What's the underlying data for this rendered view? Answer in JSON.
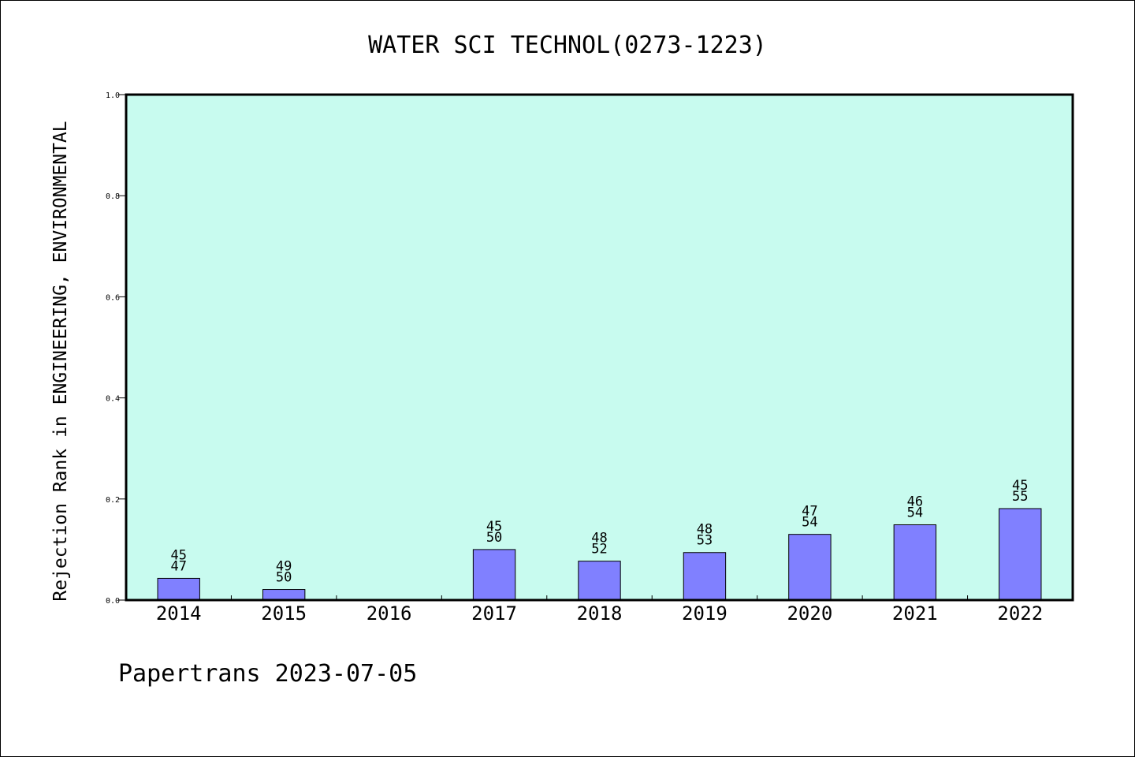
{
  "chart_data": {
    "type": "bar",
    "title": "WATER SCI TECHNOL(0273-1223)",
    "ylabel": "Rejection Rank in ENGINEERING, ENVIRONMENTAL",
    "xlabel": "",
    "ylim": [
      0,
      1.0
    ],
    "yticks": [
      "0.0",
      "0.2",
      "0.4",
      "0.6",
      "0.8",
      "1.0"
    ],
    "grid": false,
    "legend": "none",
    "categories": [
      "2014",
      "2015",
      "2016",
      "2017",
      "2018",
      "2019",
      "2020",
      "2021",
      "2022"
    ],
    "values": [
      0.043,
      0.021,
      null,
      0.1,
      0.077,
      0.094,
      0.13,
      0.149,
      0.181
    ],
    "label_top": [
      "45",
      "49",
      "",
      "45",
      "48",
      "48",
      "47",
      "46",
      "45"
    ],
    "label_bottom": [
      "47",
      "50",
      "",
      "50",
      "52",
      "53",
      "54",
      "54",
      "55"
    ],
    "colors": {
      "plot_background": "#c8fbef",
      "bar_fill": "#8080ff",
      "bar_stroke": "#000000"
    }
  },
  "footer": {
    "text": "Papertrans 2023-07-05"
  }
}
